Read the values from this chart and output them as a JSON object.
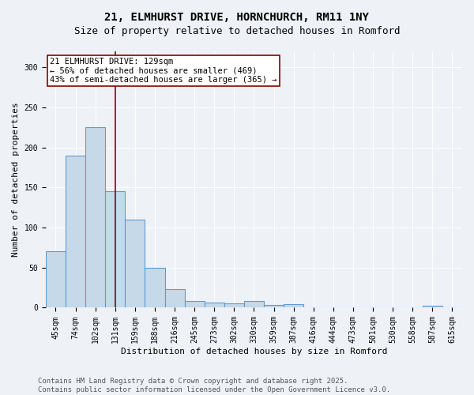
{
  "title_line1": "21, ELMHURST DRIVE, HORNCHURCH, RM11 1NY",
  "title_line2": "Size of property relative to detached houses in Romford",
  "xlabel": "Distribution of detached houses by size in Romford",
  "ylabel": "Number of detached properties",
  "bar_labels": [
    "45sqm",
    "74sqm",
    "102sqm",
    "131sqm",
    "159sqm",
    "188sqm",
    "216sqm",
    "245sqm",
    "273sqm",
    "302sqm",
    "330sqm",
    "359sqm",
    "387sqm",
    "416sqm",
    "444sqm",
    "473sqm",
    "501sqm",
    "530sqm",
    "558sqm",
    "587sqm",
    "615sqm"
  ],
  "bar_values": [
    70,
    190,
    225,
    145,
    110,
    50,
    23,
    8,
    6,
    5,
    8,
    3,
    4,
    0,
    0,
    0,
    0,
    0,
    0,
    2,
    0
  ],
  "bar_color": "#c6d9e8",
  "bar_edgecolor": "#5b9bd5",
  "bar_linewidth": 0.8,
  "vline_x_index": 3,
  "vline_color": "#8b0000",
  "vline_linewidth": 1.2,
  "annotation_text": "21 ELMHURST DRIVE: 129sqm\n← 56% of detached houses are smaller (469)\n43% of semi-detached houses are larger (365) →",
  "annotation_box_color": "#ffffff",
  "annotation_box_edgecolor": "#8b0000",
  "ylim": [
    0,
    320
  ],
  "yticks": [
    0,
    50,
    100,
    150,
    200,
    250,
    300
  ],
  "background_color": "#eef2f7",
  "grid_color": "#ffffff",
  "footer_text": "Contains HM Land Registry data © Crown copyright and database right 2025.\nContains public sector information licensed under the Open Government Licence v3.0.",
  "title_fontsize": 10,
  "subtitle_fontsize": 9,
  "axis_label_fontsize": 8,
  "tick_fontsize": 7,
  "annotation_fontsize": 7.5,
  "footer_fontsize": 6.5
}
